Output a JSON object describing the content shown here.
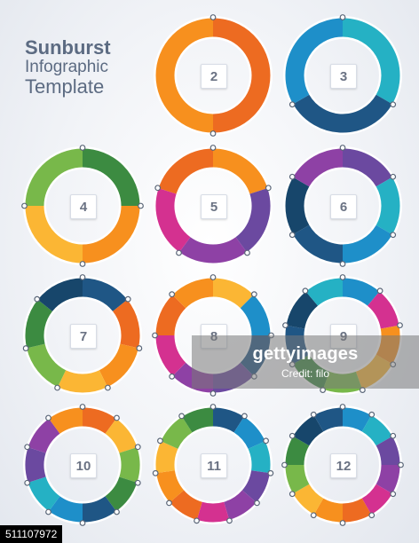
{
  "header": {
    "line1": "Sunburst",
    "line2": "Infographic",
    "line3": "Template"
  },
  "colors": {
    "orange": "#f7901e",
    "darkOrange": "#ed6b21",
    "yellow": "#fbb634",
    "teal": "#25b1c4",
    "blue": "#1e8fc9",
    "navy": "#1f5685",
    "darkNavy": "#17466b",
    "green": "#78b84a",
    "darkGreen": "#3c8b41",
    "purple": "#8e41a5",
    "magenta": "#d43190",
    "violet": "#6b49a0"
  },
  "rings": [
    {
      "label": "2",
      "segments": [
        "darkOrange",
        "orange"
      ]
    },
    {
      "label": "3",
      "segments": [
        "teal",
        "navy",
        "blue"
      ]
    },
    {
      "label": "4",
      "segments": [
        "darkGreen",
        "orange",
        "yellow",
        "green"
      ]
    },
    {
      "label": "5",
      "segments": [
        "orange",
        "violet",
        "purple",
        "magenta",
        "darkOrange"
      ]
    },
    {
      "label": "6",
      "segments": [
        "violet",
        "teal",
        "blue",
        "navy",
        "darkNavy",
        "purple"
      ]
    },
    {
      "label": "7",
      "segments": [
        "navy",
        "darkOrange",
        "orange",
        "yellow",
        "green",
        "darkGreen",
        "darkNavy"
      ]
    },
    {
      "label": "8",
      "segments": [
        "yellow",
        "blue",
        "navy",
        "violet",
        "purple",
        "magenta",
        "darkOrange",
        "orange"
      ]
    },
    {
      "label": "9",
      "segments": [
        "blue",
        "magenta",
        "orange",
        "yellow",
        "green",
        "darkGreen",
        "navy",
        "darkNavy",
        "teal"
      ]
    },
    {
      "label": "10",
      "segments": [
        "darkOrange",
        "yellow",
        "green",
        "darkGreen",
        "navy",
        "blue",
        "teal",
        "violet",
        "purple",
        "orange"
      ]
    },
    {
      "label": "11",
      "segments": [
        "navy",
        "blue",
        "teal",
        "violet",
        "purple",
        "magenta",
        "darkOrange",
        "orange",
        "yellow",
        "green",
        "darkGreen"
      ]
    },
    {
      "label": "12",
      "segments": [
        "blue",
        "teal",
        "violet",
        "purple",
        "magenta",
        "darkOrange",
        "orange",
        "yellow",
        "green",
        "darkGreen",
        "darkNavy",
        "navy"
      ]
    }
  ],
  "watermark": {
    "brand": "gettyimages",
    "credit": "Credit: filo"
  },
  "image_id": "511107972"
}
